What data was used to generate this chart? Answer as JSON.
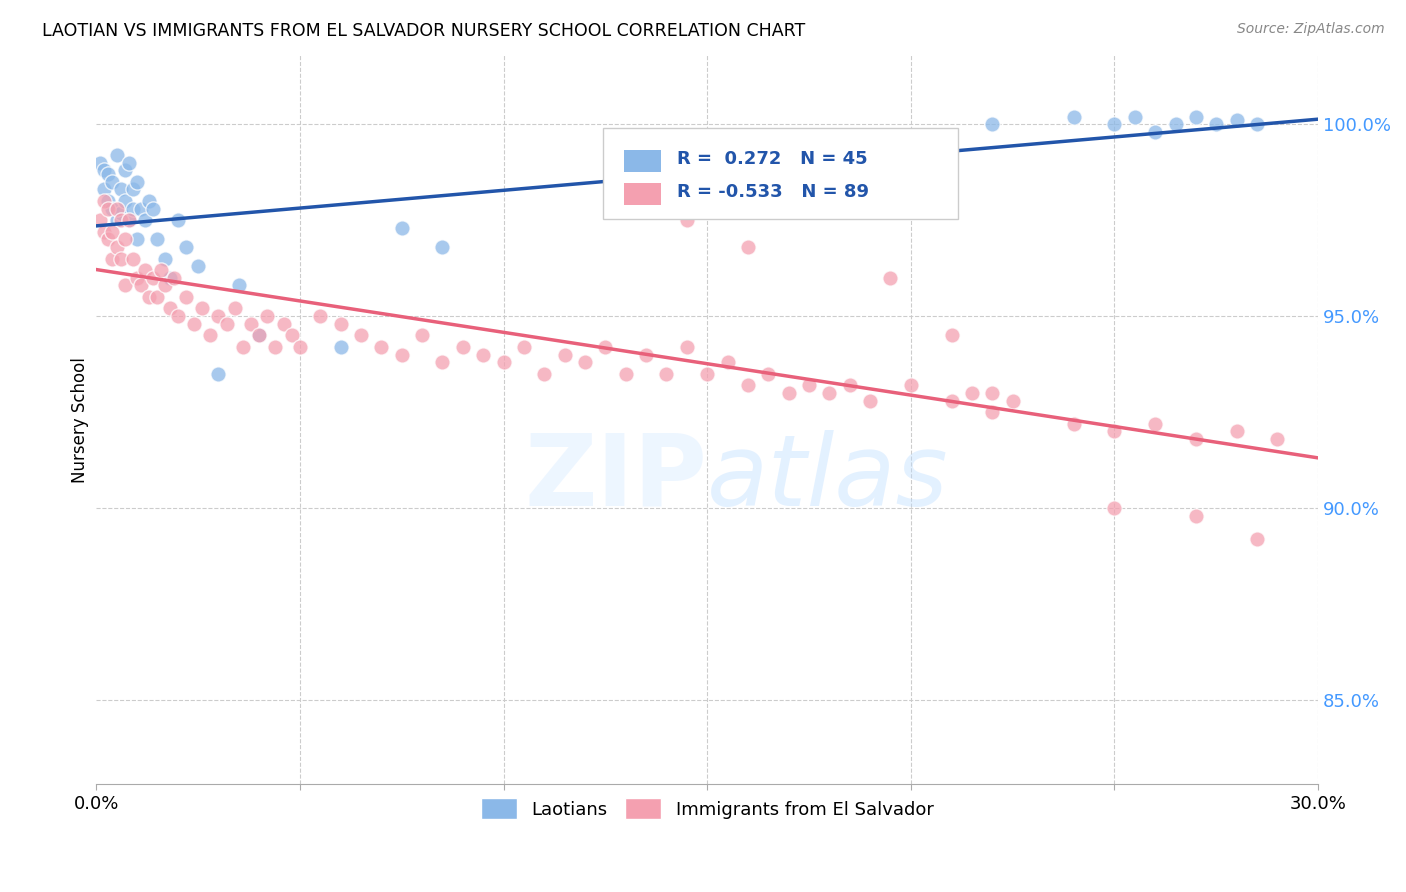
{
  "title": "LAOTIAN VS IMMIGRANTS FROM EL SALVADOR NURSERY SCHOOL CORRELATION CHART",
  "source": "Source: ZipAtlas.com",
  "ylabel": "Nursery School",
  "ytick_labels": [
    "85.0%",
    "90.0%",
    "95.0%",
    "100.0%"
  ],
  "ytick_values": [
    0.85,
    0.9,
    0.95,
    1.0
  ],
  "xmin": 0.0,
  "xmax": 0.3,
  "ymin": 0.828,
  "ymax": 1.018,
  "legend_label1": "Laotians",
  "legend_label2": "Immigrants from El Salvador",
  "R1": 0.272,
  "N1": 45,
  "R2": -0.533,
  "N2": 89,
  "color_blue": "#8BB8E8",
  "color_pink": "#F4A0B0",
  "color_blue_line": "#2255AA",
  "color_pink_line": "#E8607A",
  "laotian_x": [
    0.001,
    0.002,
    0.002,
    0.003,
    0.003,
    0.004,
    0.004,
    0.005,
    0.005,
    0.006,
    0.006,
    0.007,
    0.007,
    0.008,
    0.008,
    0.009,
    0.009,
    0.01,
    0.01,
    0.011,
    0.012,
    0.013,
    0.014,
    0.015,
    0.017,
    0.018,
    0.02,
    0.022,
    0.025,
    0.03,
    0.035,
    0.04,
    0.06,
    0.075,
    0.085,
    0.22,
    0.24,
    0.25,
    0.255,
    0.26,
    0.265,
    0.27,
    0.275,
    0.28,
    0.285
  ],
  "laotian_y": [
    0.99,
    0.988,
    0.983,
    0.987,
    0.98,
    0.985,
    0.978,
    0.992,
    0.975,
    0.983,
    0.977,
    0.98,
    0.988,
    0.975,
    0.99,
    0.978,
    0.983,
    0.97,
    0.985,
    0.978,
    0.975,
    0.98,
    0.978,
    0.97,
    0.965,
    0.96,
    0.975,
    0.968,
    0.963,
    0.935,
    0.958,
    0.945,
    0.942,
    0.973,
    0.968,
    1.0,
    1.002,
    1.0,
    1.002,
    0.998,
    1.0,
    1.002,
    1.0,
    1.001,
    1.0
  ],
  "salvador_x": [
    0.001,
    0.002,
    0.002,
    0.003,
    0.003,
    0.004,
    0.004,
    0.005,
    0.005,
    0.006,
    0.006,
    0.007,
    0.007,
    0.008,
    0.009,
    0.01,
    0.011,
    0.012,
    0.013,
    0.014,
    0.015,
    0.016,
    0.017,
    0.018,
    0.019,
    0.02,
    0.022,
    0.024,
    0.026,
    0.028,
    0.03,
    0.032,
    0.034,
    0.036,
    0.038,
    0.04,
    0.042,
    0.044,
    0.046,
    0.048,
    0.05,
    0.055,
    0.06,
    0.065,
    0.07,
    0.075,
    0.08,
    0.085,
    0.09,
    0.095,
    0.1,
    0.105,
    0.11,
    0.115,
    0.12,
    0.125,
    0.13,
    0.135,
    0.14,
    0.145,
    0.15,
    0.155,
    0.16,
    0.165,
    0.17,
    0.175,
    0.18,
    0.185,
    0.19,
    0.2,
    0.21,
    0.215,
    0.22,
    0.225,
    0.24,
    0.25,
    0.26,
    0.27,
    0.28,
    0.29,
    0.145,
    0.16,
    0.175,
    0.195,
    0.21,
    0.22,
    0.25,
    0.27,
    0.285
  ],
  "salvador_y": [
    0.975,
    0.98,
    0.972,
    0.978,
    0.97,
    0.972,
    0.965,
    0.978,
    0.968,
    0.975,
    0.965,
    0.97,
    0.958,
    0.975,
    0.965,
    0.96,
    0.958,
    0.962,
    0.955,
    0.96,
    0.955,
    0.962,
    0.958,
    0.952,
    0.96,
    0.95,
    0.955,
    0.948,
    0.952,
    0.945,
    0.95,
    0.948,
    0.952,
    0.942,
    0.948,
    0.945,
    0.95,
    0.942,
    0.948,
    0.945,
    0.942,
    0.95,
    0.948,
    0.945,
    0.942,
    0.94,
    0.945,
    0.938,
    0.942,
    0.94,
    0.938,
    0.942,
    0.935,
    0.94,
    0.938,
    0.942,
    0.935,
    0.94,
    0.935,
    0.942,
    0.935,
    0.938,
    0.932,
    0.935,
    0.93,
    0.932,
    0.93,
    0.932,
    0.928,
    0.932,
    0.928,
    0.93,
    0.925,
    0.928,
    0.922,
    0.92,
    0.922,
    0.918,
    0.92,
    0.918,
    0.975,
    0.968,
    0.985,
    0.96,
    0.945,
    0.93,
    0.9,
    0.898,
    0.892
  ]
}
